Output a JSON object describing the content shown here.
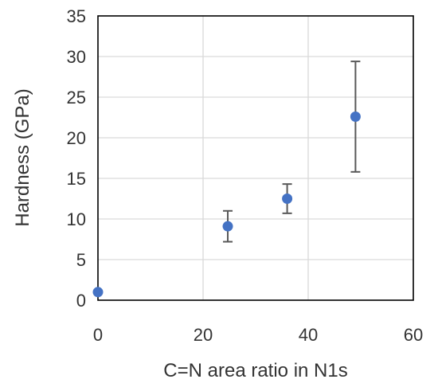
{
  "chart_data": {
    "type": "scatter",
    "title": "",
    "xlabel": "C=N area ratio in N1s",
    "ylabel": "Hardness (GPa)",
    "xlim": [
      0,
      60
    ],
    "ylim": [
      0,
      35
    ],
    "x_ticks": [
      "0",
      "20",
      "40",
      "60"
    ],
    "y_ticks": [
      "0",
      "5",
      "10",
      "15",
      "20",
      "25",
      "30",
      "35"
    ],
    "grid": "vertical and horizontal",
    "legend": "none",
    "marker_color": "#4472c4",
    "error_bar_color": "#595959",
    "series": [
      {
        "points": [
          {
            "x": 0,
            "y": 1.0,
            "err_low": 0,
            "err_high": 0
          },
          {
            "x": 24.7,
            "y": 9.1,
            "err_low": 1.9,
            "err_high": 1.9
          },
          {
            "x": 36.0,
            "y": 12.5,
            "err_low": 1.8,
            "err_high": 1.8
          },
          {
            "x": 49.0,
            "y": 22.6,
            "err_low": 6.8,
            "err_high": 6.8
          }
        ]
      }
    ]
  }
}
